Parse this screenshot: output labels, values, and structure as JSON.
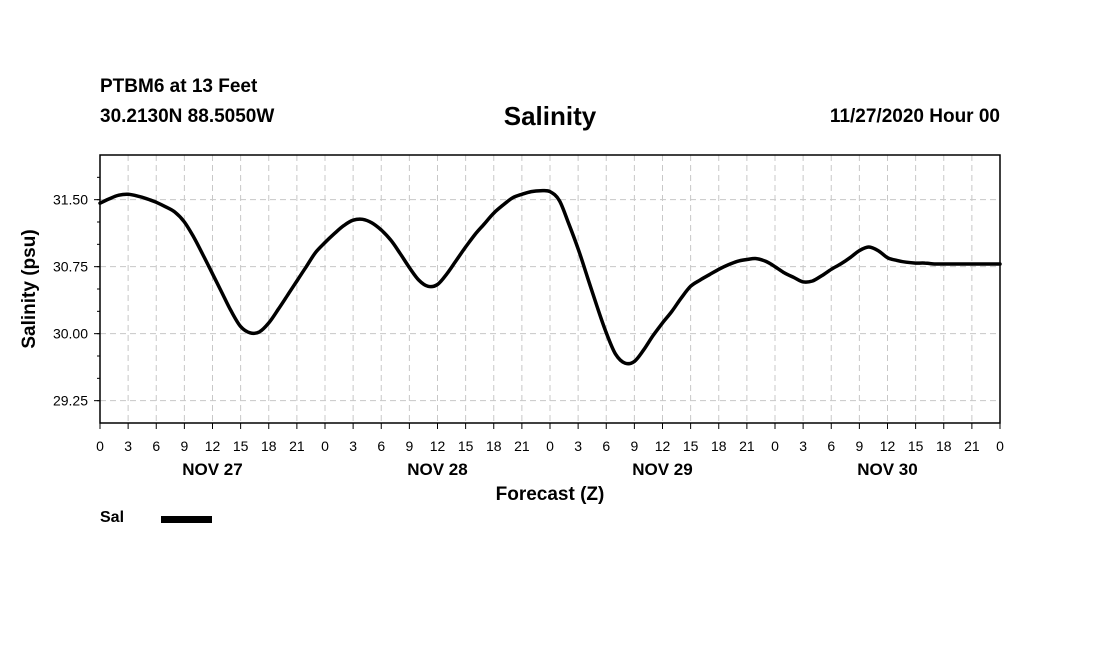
{
  "header": {
    "station": "PTBM6 at 13 Feet",
    "coords": "30.2130N 88.5050W",
    "title": "Salinity",
    "issued": "11/27/2020 Hour 00"
  },
  "legend": {
    "label": "Sal",
    "color": "#000000"
  },
  "chart_data": {
    "type": "line",
    "title": "Salinity",
    "xlabel": "Forecast (Z)",
    "ylabel": "Salinity (psu)",
    "xlim": [
      0,
      96
    ],
    "ylim": [
      29.0,
      32.0
    ],
    "yticks": [
      29.25,
      30.0,
      30.75,
      31.5
    ],
    "grid": true,
    "legend_position": "bottom-left",
    "x_tick_labels": [
      "0",
      "3",
      "6",
      "9",
      "12",
      "15",
      "18",
      "21",
      "0",
      "3",
      "6",
      "9",
      "12",
      "15",
      "18",
      "21",
      "0",
      "3",
      "6",
      "9",
      "12",
      "15",
      "18",
      "21",
      "0",
      "3",
      "6",
      "9",
      "12",
      "15",
      "18",
      "21",
      "0"
    ],
    "day_labels": [
      {
        "label": "NOV 27",
        "hour": 12
      },
      {
        "label": "NOV 28",
        "hour": 36
      },
      {
        "label": "NOV 29",
        "hour": 60
      },
      {
        "label": "NOV 30",
        "hour": 84
      }
    ],
    "series": [
      {
        "name": "Sal",
        "x": [
          0,
          1,
          2,
          3,
          4,
          5,
          6,
          7,
          8,
          9,
          10,
          11,
          12,
          13,
          14,
          15,
          16,
          17,
          18,
          19,
          20,
          21,
          22,
          23,
          24,
          25,
          26,
          27,
          28,
          29,
          30,
          31,
          32,
          33,
          34,
          35,
          36,
          37,
          38,
          39,
          40,
          41,
          42,
          43,
          44,
          45,
          46,
          47,
          48,
          49,
          50,
          51,
          52,
          53,
          54,
          55,
          56,
          57,
          58,
          59,
          60,
          61,
          62,
          63,
          64,
          65,
          66,
          67,
          68,
          69,
          70,
          71,
          72,
          73,
          74,
          75,
          76,
          77,
          78,
          79,
          80,
          81,
          82,
          83,
          84,
          85,
          86,
          87,
          88,
          89,
          90,
          91,
          92,
          93,
          94,
          95,
          96
        ],
        "y": [
          31.46,
          31.51,
          31.55,
          31.56,
          31.54,
          31.51,
          31.47,
          31.42,
          31.36,
          31.25,
          31.08,
          30.88,
          30.67,
          30.46,
          30.25,
          30.08,
          30.01,
          30.02,
          30.12,
          30.27,
          30.43,
          30.59,
          30.75,
          30.91,
          31.02,
          31.12,
          31.21,
          31.27,
          31.28,
          31.24,
          31.16,
          31.05,
          30.9,
          30.74,
          30.6,
          30.53,
          30.55,
          30.67,
          30.82,
          30.97,
          31.11,
          31.23,
          31.35,
          31.44,
          31.52,
          31.56,
          31.59,
          31.6,
          31.59,
          31.49,
          31.23,
          30.95,
          30.63,
          30.31,
          30.01,
          29.77,
          29.67,
          29.69,
          29.82,
          29.98,
          30.12,
          30.25,
          30.4,
          30.53,
          30.6,
          30.66,
          30.72,
          30.77,
          30.81,
          30.83,
          30.84,
          30.81,
          30.75,
          30.68,
          30.63,
          30.58,
          30.59,
          30.65,
          30.72,
          30.78,
          30.85,
          30.93,
          30.97,
          30.93,
          30.85,
          30.82,
          30.8,
          30.79,
          30.79,
          30.78,
          30.78,
          30.78,
          30.78,
          30.78,
          30.78,
          30.78,
          30.78
        ]
      }
    ]
  }
}
